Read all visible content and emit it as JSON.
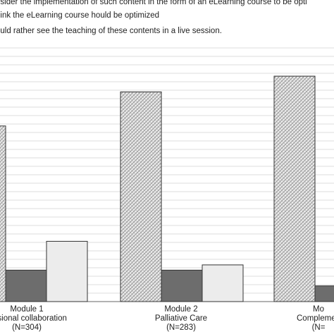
{
  "chart_data": {
    "type": "bar",
    "ylim": [
      0,
      100
    ],
    "grid": true,
    "legend_position": "top",
    "categories": [
      {
        "lines": [
          "Module 1",
          "fessional collaboration",
          "(N=304)"
        ]
      },
      {
        "lines": [
          "Module 2",
          "Palliative Care",
          "(N=283)"
        ]
      },
      {
        "lines": [
          "Mo",
          "Complemen",
          "(N="
        ]
      }
    ],
    "series": [
      {
        "name": "nsider the implementation of such content in the form of an eLearning course to be opti",
        "pattern": "hatch",
        "values": [
          67,
          80,
          86
        ]
      },
      {
        "name": "hink the eLearning course hould be optimized",
        "pattern": "dark",
        "values": [
          12,
          12,
          6
        ]
      },
      {
        "name": "ould rather see the teaching of these contents in a live session.",
        "pattern": "light",
        "values": [
          23,
          14,
          null
        ]
      }
    ]
  }
}
